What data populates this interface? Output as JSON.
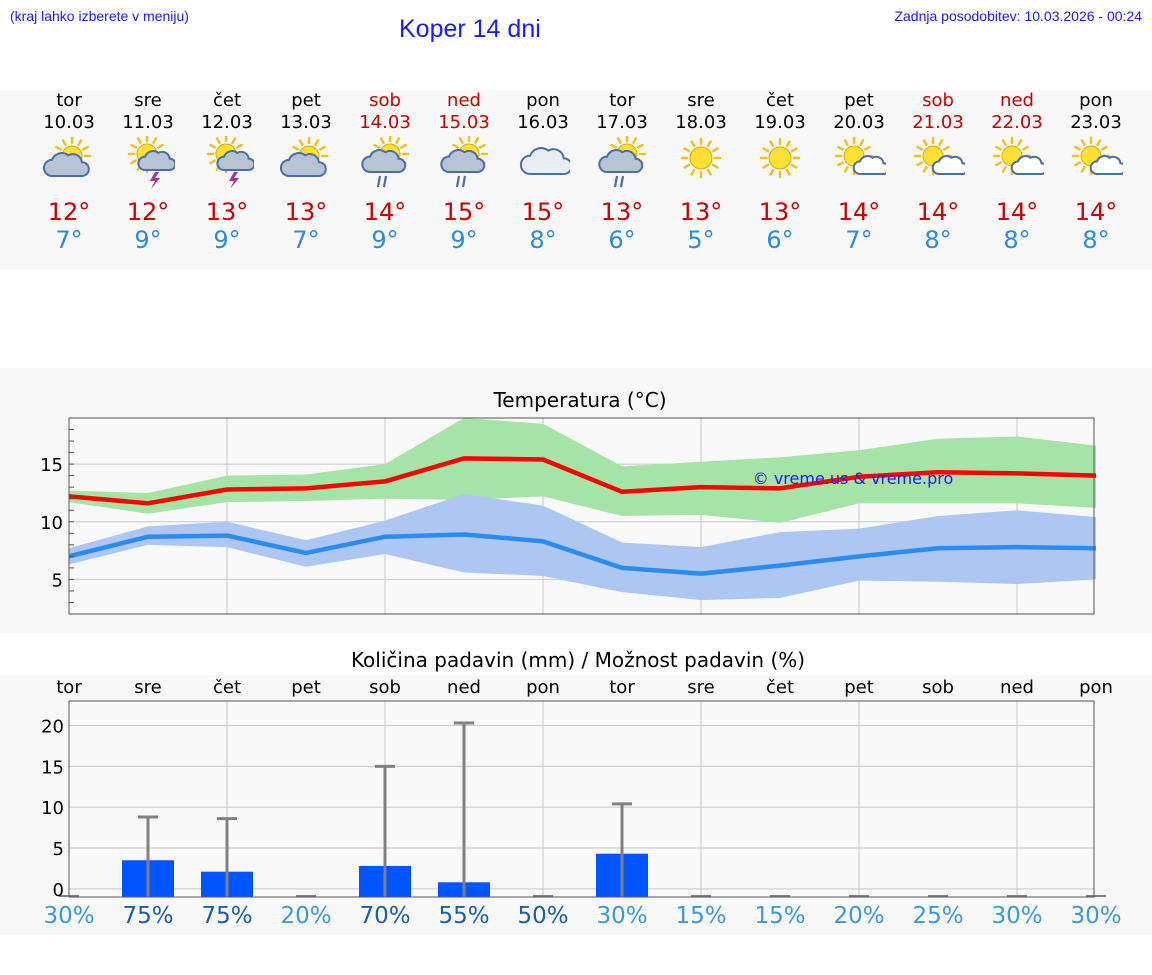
{
  "header": {
    "hint": "(kraj lahko izberete v meniju)",
    "title": "Koper 14 dni",
    "updated": "Zadnja posodobitev: 10.03.2026 - 00:24"
  },
  "days": [
    {
      "name": "tor",
      "date": "10.03",
      "weekend": false,
      "tmax": "12°",
      "tmin": "7°",
      "icon": "partly-cloudy-icon",
      "pct": "30%"
    },
    {
      "name": "sre",
      "date": "11.03",
      "weekend": false,
      "tmax": "12°",
      "tmin": "9°",
      "icon": "thunderstorm-icon",
      "pct": "75%"
    },
    {
      "name": "čet",
      "date": "12.03",
      "weekend": false,
      "tmax": "13°",
      "tmin": "9°",
      "icon": "thunderstorm-icon",
      "pct": "75%"
    },
    {
      "name": "pet",
      "date": "13.03",
      "weekend": false,
      "tmax": "13°",
      "tmin": "7°",
      "icon": "partly-cloudy-icon",
      "pct": "20%"
    },
    {
      "name": "sob",
      "date": "14.03",
      "weekend": true,
      "tmax": "14°",
      "tmin": "9°",
      "icon": "sun-rain-icon",
      "pct": "70%"
    },
    {
      "name": "ned",
      "date": "15.03",
      "weekend": true,
      "tmax": "15°",
      "tmin": "9°",
      "icon": "sun-rain-icon",
      "pct": "55%"
    },
    {
      "name": "pon",
      "date": "16.03",
      "weekend": false,
      "tmax": "15°",
      "tmin": "8°",
      "icon": "cloudy-icon",
      "pct": "50%"
    },
    {
      "name": "tor",
      "date": "17.03",
      "weekend": false,
      "tmax": "13°",
      "tmin": "6°",
      "icon": "sun-rain-icon",
      "pct": "30%"
    },
    {
      "name": "sre",
      "date": "18.03",
      "weekend": false,
      "tmax": "13°",
      "tmin": "5°",
      "icon": "sunny-icon",
      "pct": "15%"
    },
    {
      "name": "čet",
      "date": "19.03",
      "weekend": false,
      "tmax": "13°",
      "tmin": "6°",
      "icon": "sunny-icon",
      "pct": "15%"
    },
    {
      "name": "pet",
      "date": "20.03",
      "weekend": false,
      "tmax": "14°",
      "tmin": "7°",
      "icon": "mostly-sunny-icon",
      "pct": "20%"
    },
    {
      "name": "sob",
      "date": "21.03",
      "weekend": true,
      "tmax": "14°",
      "tmin": "8°",
      "icon": "mostly-sunny-icon",
      "pct": "25%"
    },
    {
      "name": "ned",
      "date": "22.03",
      "weekend": true,
      "tmax": "14°",
      "tmin": "8°",
      "icon": "mostly-sunny-icon",
      "pct": "30%"
    },
    {
      "name": "pon",
      "date": "23.03",
      "weekend": false,
      "tmax": "14°",
      "tmin": "8°",
      "icon": "mostly-sunny-icon",
      "pct": "30%"
    }
  ],
  "colors": {
    "link": "#1a1aff",
    "max_line": "#ff0000",
    "max_band": "#a6e3a6",
    "min_line": "#2a8cf0",
    "min_band": "#adc6f2",
    "bar": "#0055ff",
    "whisker": "#808080",
    "pct_dark": "#1a5fa8",
    "pct_light": "#3a9ad9"
  },
  "chart_data": [
    {
      "type": "line",
      "title": "Temperatura (°C)",
      "watermark": "© vreme.us & vreme.pro",
      "x": [
        0,
        1,
        2,
        3,
        4,
        5,
        6,
        7,
        8,
        9,
        10,
        11,
        12,
        13
      ],
      "ylim": [
        2,
        19
      ],
      "yticks": [
        5,
        10,
        15
      ],
      "series": [
        {
          "name": "max",
          "values": [
            12.2,
            11.6,
            12.8,
            12.9,
            13.5,
            15.5,
            15.4,
            12.6,
            13.0,
            12.9,
            13.9,
            14.3,
            14.2,
            14.0
          ]
        },
        {
          "name": "max_low",
          "values": [
            11.7,
            10.7,
            11.7,
            11.8,
            12.0,
            11.9,
            12.2,
            10.5,
            10.6,
            9.9,
            11.6,
            11.6,
            11.6,
            11.2
          ]
        },
        {
          "name": "max_high",
          "values": [
            12.7,
            12.5,
            14.0,
            14.1,
            15.0,
            19.0,
            18.5,
            14.8,
            15.2,
            15.6,
            16.2,
            17.2,
            17.4,
            16.6
          ]
        },
        {
          "name": "min",
          "values": [
            7.0,
            8.7,
            8.8,
            7.3,
            8.7,
            8.9,
            8.3,
            6.0,
            5.5,
            6.2,
            7.0,
            7.7,
            7.8,
            7.7
          ]
        },
        {
          "name": "min_low",
          "values": [
            6.3,
            8.0,
            7.8,
            6.1,
            7.2,
            5.6,
            5.3,
            3.9,
            3.2,
            3.4,
            4.9,
            4.8,
            4.6,
            5.0
          ]
        },
        {
          "name": "min_high",
          "values": [
            7.7,
            9.6,
            10.0,
            8.4,
            10.1,
            12.4,
            11.4,
            8.2,
            7.8,
            9.1,
            9.4,
            10.5,
            11.0,
            10.4
          ]
        }
      ]
    },
    {
      "type": "bar",
      "title": "Količina padavin (mm) / Možnost padavin (%)",
      "categories": [
        "tor",
        "sre",
        "čet",
        "pet",
        "sob",
        "ned",
        "pon",
        "tor",
        "sre",
        "čet",
        "pet",
        "sob",
        "ned",
        "pon"
      ],
      "ylim": [
        -1,
        23
      ],
      "yticks": [
        0,
        5,
        10,
        15,
        20
      ],
      "values": [
        0,
        3.5,
        2.1,
        0,
        2.8,
        0.8,
        0,
        4.3,
        0,
        0,
        0,
        0,
        0,
        0
      ],
      "error_max": [
        0,
        8.8,
        8.6,
        0,
        15.0,
        20.3,
        0,
        10.4,
        0,
        0,
        0,
        0,
        0,
        0
      ],
      "probability": [
        "30%",
        "75%",
        "75%",
        "20%",
        "70%",
        "55%",
        "50%",
        "30%",
        "15%",
        "15%",
        "20%",
        "25%",
        "30%",
        "30%"
      ]
    }
  ]
}
